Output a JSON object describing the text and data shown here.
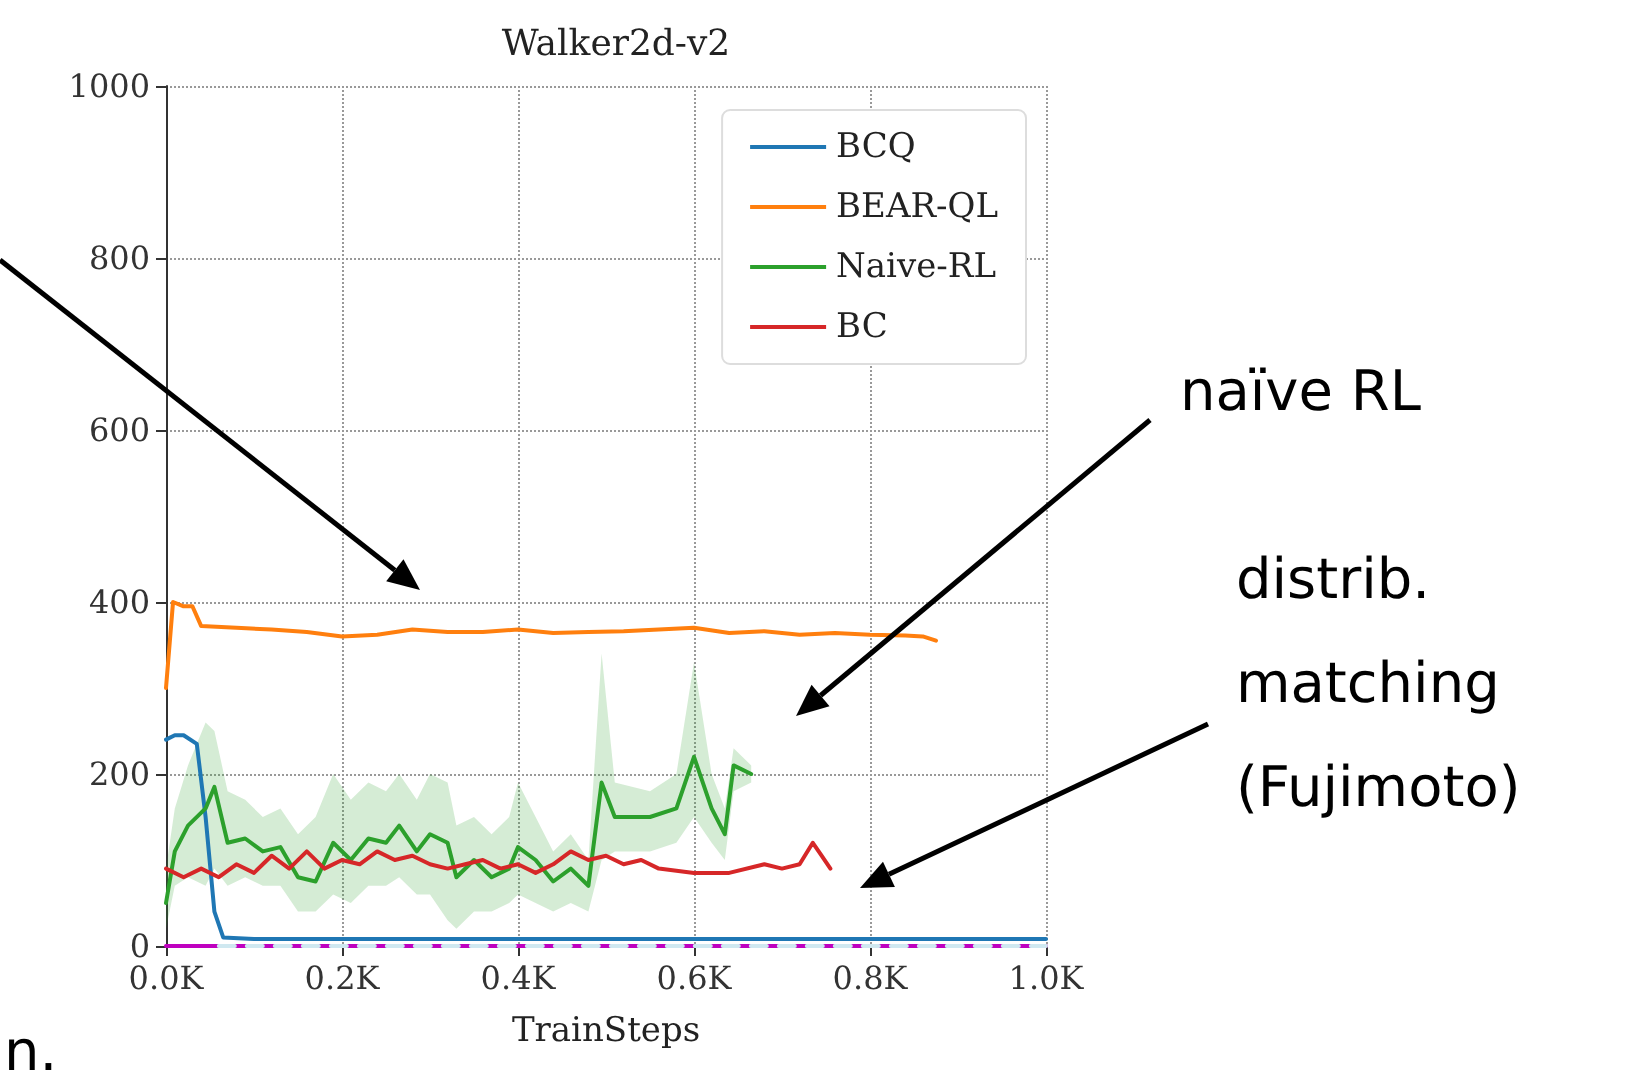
{
  "chart_data": {
    "type": "line",
    "title": "Walker2d-v2",
    "xlabel": "TrainSteps",
    "annotations": [
      "naïve RL",
      "distrib.\nmatching\n(Fujimoto)",
      "n."
    ],
    "xlim": [
      0,
      1000
    ],
    "xticks": [
      {
        "value": 0,
        "label": "0.0K"
      },
      {
        "value": 200,
        "label": "0.2K"
      },
      {
        "value": 400,
        "label": "0.4K"
      },
      {
        "value": 600,
        "label": "0.6K"
      },
      {
        "value": 800,
        "label": "0.8K"
      },
      {
        "value": 1000,
        "label": "1.0K"
      }
    ],
    "ylim": [
      0,
      1000
    ],
    "yticks": [
      0,
      200,
      400,
      600,
      800,
      1000
    ],
    "grid": true,
    "legend": "top right",
    "line_style": "solid",
    "series": [
      {
        "name": "BCQ",
        "color": "#1f77b4",
        "x": [
          0,
          10,
          20,
          35,
          45,
          55,
          65,
          100,
          1000
        ],
        "values": [
          240,
          245,
          245,
          235,
          150,
          40,
          10,
          8,
          8
        ]
      },
      {
        "name": "BEAR-QL",
        "color": "#ff7f0e",
        "x": [
          0,
          8,
          20,
          30,
          40,
          80,
          120,
          160,
          200,
          240,
          280,
          320,
          360,
          400,
          440,
          480,
          520,
          560,
          600,
          640,
          680,
          720,
          760,
          800,
          840,
          860,
          875
        ],
        "values": [
          300,
          400,
          395,
          395,
          372,
          370,
          368,
          365,
          360,
          362,
          368,
          365,
          365,
          368,
          364,
          365,
          366,
          368,
          370,
          364,
          366,
          362,
          364,
          362,
          361,
          360,
          355
        ]
      },
      {
        "name": "Naive-RL",
        "color": "#2ca02c",
        "x": [
          0,
          10,
          25,
          45,
          55,
          70,
          90,
          110,
          130,
          150,
          170,
          190,
          210,
          230,
          250,
          265,
          285,
          300,
          320,
          330,
          350,
          370,
          390,
          400,
          420,
          440,
          460,
          480,
          495,
          510,
          550,
          580,
          600,
          620,
          635,
          645,
          665
        ],
        "values": [
          50,
          110,
          140,
          160,
          185,
          120,
          125,
          110,
          115,
          80,
          75,
          120,
          100,
          125,
          120,
          140,
          110,
          130,
          120,
          80,
          100,
          80,
          90,
          115,
          100,
          75,
          90,
          70,
          190,
          150,
          150,
          160,
          220,
          160,
          130,
          210,
          200
        ],
        "lower": [
          20,
          70,
          80,
          70,
          90,
          70,
          80,
          70,
          70,
          40,
          40,
          60,
          50,
          70,
          70,
          80,
          60,
          60,
          30,
          20,
          40,
          40,
          50,
          60,
          50,
          40,
          50,
          40,
          100,
          110,
          110,
          120,
          150,
          120,
          100,
          180,
          190
        ],
        "upper": [
          90,
          160,
          210,
          260,
          250,
          180,
          170,
          150,
          160,
          130,
          150,
          200,
          170,
          190,
          180,
          200,
          170,
          200,
          190,
          140,
          150,
          130,
          150,
          190,
          150,
          110,
          130,
          100,
          340,
          190,
          180,
          200,
          330,
          200,
          160,
          230,
          210
        ]
      },
      {
        "name": "BC",
        "color": "#d62728",
        "x": [
          0,
          20,
          40,
          60,
          80,
          100,
          120,
          140,
          160,
          180,
          200,
          220,
          240,
          260,
          280,
          300,
          320,
          340,
          360,
          380,
          400,
          420,
          440,
          460,
          480,
          500,
          520,
          540,
          560,
          600,
          640,
          680,
          700,
          720,
          735,
          745,
          755
        ],
        "values": [
          90,
          80,
          90,
          80,
          95,
          85,
          105,
          90,
          110,
          90,
          100,
          95,
          110,
          100,
          105,
          95,
          90,
          95,
          100,
          90,
          95,
          85,
          95,
          110,
          100,
          105,
          95,
          100,
          90,
          85,
          85,
          95,
          90,
          95,
          120,
          105,
          90
        ]
      },
      {
        "color": "#bf00bf",
        "x": [
          0,
          1000
        ],
        "values": [
          0,
          0
        ]
      },
      {
        "color": "#cfe8f0",
        "x": [
          60,
          1000
        ],
        "values": [
          0,
          0
        ],
        "line_style": "dashed"
      }
    ]
  }
}
